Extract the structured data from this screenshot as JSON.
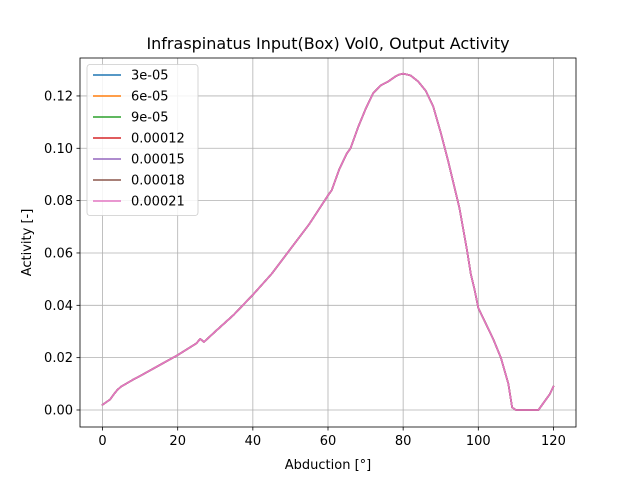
{
  "chart_data": {
    "type": "line",
    "title": "Infraspinatus Input(Box) Vol0, Output Activity",
    "xlabel": "Abduction [°]",
    "ylabel": "Activity [-]",
    "xlim": [
      -6,
      126
    ],
    "ylim": [
      -0.0065,
      0.1345
    ],
    "grid": true,
    "legend_position": "upper-left",
    "xticks": [
      0,
      20,
      40,
      60,
      80,
      100,
      120
    ],
    "xtick_labels": [
      "0",
      "20",
      "40",
      "60",
      "80",
      "100",
      "120"
    ],
    "yticks": [
      0.0,
      0.02,
      0.04,
      0.06,
      0.08,
      0.1,
      0.12
    ],
    "ytick_labels": [
      "0.00",
      "0.02",
      "0.04",
      "0.06",
      "0.08",
      "0.10",
      "0.12"
    ],
    "x": [
      0,
      1,
      2,
      3,
      4,
      5,
      6,
      8,
      10,
      15,
      20,
      25,
      26,
      27,
      30,
      35,
      40,
      45,
      50,
      55,
      60,
      61,
      63,
      65,
      66,
      68,
      70,
      72,
      74,
      76,
      78,
      79,
      80,
      81,
      82,
      84,
      86,
      88,
      90,
      92,
      95,
      97,
      98,
      99,
      100,
      102,
      104,
      106,
      108,
      109,
      110,
      112,
      114,
      115,
      116,
      117,
      118,
      119,
      120
    ],
    "series": [
      {
        "name": "3e-05",
        "color": "#1f77b4",
        "values": [
          0.002,
          0.003,
          0.004,
          0.006,
          0.0078,
          0.009,
          0.0098,
          0.0115,
          0.013,
          0.017,
          0.021,
          0.0255,
          0.0272,
          0.026,
          0.03,
          0.0365,
          0.044,
          0.052,
          0.0615,
          0.071,
          0.082,
          0.084,
          0.092,
          0.098,
          0.1,
          0.108,
          0.115,
          0.121,
          0.124,
          0.1255,
          0.1275,
          0.1282,
          0.1285,
          0.1282,
          0.1278,
          0.1255,
          0.122,
          0.116,
          0.106,
          0.095,
          0.077,
          0.061,
          0.052,
          0.046,
          0.039,
          0.033,
          0.027,
          0.02,
          0.01,
          0.001,
          0.0,
          0.0,
          0.0,
          0.0,
          0.0,
          0.002,
          0.004,
          0.006,
          0.009
        ]
      },
      {
        "name": "6e-05",
        "color": "#ff7f0e",
        "values": [
          0.002,
          0.003,
          0.004,
          0.006,
          0.0078,
          0.009,
          0.0098,
          0.0115,
          0.013,
          0.017,
          0.021,
          0.0255,
          0.0272,
          0.026,
          0.03,
          0.0365,
          0.044,
          0.052,
          0.0615,
          0.071,
          0.082,
          0.084,
          0.092,
          0.098,
          0.1,
          0.108,
          0.115,
          0.121,
          0.124,
          0.1255,
          0.1275,
          0.1282,
          0.1285,
          0.1282,
          0.1278,
          0.1255,
          0.122,
          0.116,
          0.106,
          0.095,
          0.077,
          0.061,
          0.052,
          0.046,
          0.039,
          0.033,
          0.027,
          0.02,
          0.01,
          0.001,
          0.0,
          0.0,
          0.0,
          0.0,
          0.0,
          0.002,
          0.004,
          0.006,
          0.009
        ]
      },
      {
        "name": "9e-05",
        "color": "#2ca02c",
        "values": [
          0.002,
          0.003,
          0.004,
          0.006,
          0.0078,
          0.009,
          0.0098,
          0.0115,
          0.013,
          0.017,
          0.021,
          0.0255,
          0.0272,
          0.026,
          0.03,
          0.0365,
          0.044,
          0.052,
          0.0615,
          0.071,
          0.082,
          0.084,
          0.092,
          0.098,
          0.1,
          0.108,
          0.115,
          0.121,
          0.124,
          0.1255,
          0.1275,
          0.1282,
          0.1285,
          0.1282,
          0.1278,
          0.1255,
          0.122,
          0.116,
          0.106,
          0.095,
          0.077,
          0.061,
          0.052,
          0.046,
          0.039,
          0.033,
          0.027,
          0.02,
          0.01,
          0.001,
          0.0,
          0.0,
          0.0,
          0.0,
          0.0,
          0.002,
          0.004,
          0.006,
          0.009
        ]
      },
      {
        "name": "0.00012",
        "color": "#d62728",
        "values": [
          0.002,
          0.003,
          0.004,
          0.006,
          0.0078,
          0.009,
          0.0098,
          0.0115,
          0.013,
          0.017,
          0.021,
          0.0255,
          0.0272,
          0.026,
          0.03,
          0.0365,
          0.044,
          0.052,
          0.0615,
          0.071,
          0.082,
          0.084,
          0.092,
          0.098,
          0.1,
          0.108,
          0.115,
          0.121,
          0.124,
          0.1255,
          0.1275,
          0.1282,
          0.1285,
          0.1282,
          0.1278,
          0.1255,
          0.122,
          0.116,
          0.106,
          0.095,
          0.077,
          0.061,
          0.052,
          0.046,
          0.039,
          0.033,
          0.027,
          0.02,
          0.01,
          0.001,
          0.0,
          0.0,
          0.0,
          0.0,
          0.0,
          0.002,
          0.004,
          0.006,
          0.009
        ]
      },
      {
        "name": "0.00015",
        "color": "#9467bd",
        "values": [
          0.002,
          0.003,
          0.004,
          0.006,
          0.0078,
          0.009,
          0.0098,
          0.0115,
          0.013,
          0.017,
          0.021,
          0.0255,
          0.0272,
          0.026,
          0.03,
          0.0365,
          0.044,
          0.052,
          0.0615,
          0.071,
          0.082,
          0.084,
          0.092,
          0.098,
          0.1,
          0.108,
          0.115,
          0.121,
          0.124,
          0.1255,
          0.1275,
          0.1282,
          0.1285,
          0.1282,
          0.1278,
          0.1255,
          0.122,
          0.116,
          0.106,
          0.095,
          0.077,
          0.061,
          0.052,
          0.046,
          0.039,
          0.033,
          0.027,
          0.02,
          0.01,
          0.001,
          0.0,
          0.0,
          0.0,
          0.0,
          0.0,
          0.002,
          0.004,
          0.006,
          0.009
        ]
      },
      {
        "name": "0.00018",
        "color": "#8c564b",
        "values": [
          0.002,
          0.003,
          0.004,
          0.006,
          0.0078,
          0.009,
          0.0098,
          0.0115,
          0.013,
          0.017,
          0.021,
          0.0255,
          0.0272,
          0.026,
          0.03,
          0.0365,
          0.044,
          0.052,
          0.0615,
          0.071,
          0.082,
          0.084,
          0.092,
          0.098,
          0.1,
          0.108,
          0.115,
          0.121,
          0.124,
          0.1255,
          0.1275,
          0.1282,
          0.1285,
          0.1282,
          0.1278,
          0.1255,
          0.122,
          0.116,
          0.106,
          0.095,
          0.077,
          0.061,
          0.052,
          0.046,
          0.039,
          0.033,
          0.027,
          0.02,
          0.01,
          0.001,
          0.0,
          0.0,
          0.0,
          0.0,
          0.0,
          0.002,
          0.004,
          0.006,
          0.009
        ]
      },
      {
        "name": "0.00021",
        "color": "#e377c2",
        "values": [
          0.002,
          0.003,
          0.004,
          0.006,
          0.0078,
          0.009,
          0.0098,
          0.0115,
          0.013,
          0.017,
          0.021,
          0.0255,
          0.0272,
          0.026,
          0.03,
          0.0365,
          0.044,
          0.052,
          0.0615,
          0.071,
          0.082,
          0.084,
          0.092,
          0.098,
          0.1,
          0.108,
          0.115,
          0.121,
          0.124,
          0.1255,
          0.1275,
          0.1282,
          0.1285,
          0.1282,
          0.1278,
          0.1255,
          0.122,
          0.116,
          0.106,
          0.095,
          0.077,
          0.061,
          0.052,
          0.046,
          0.039,
          0.033,
          0.027,
          0.02,
          0.01,
          0.001,
          0.0,
          0.0,
          0.0,
          0.0,
          0.0,
          0.002,
          0.004,
          0.006,
          0.009
        ]
      }
    ]
  }
}
